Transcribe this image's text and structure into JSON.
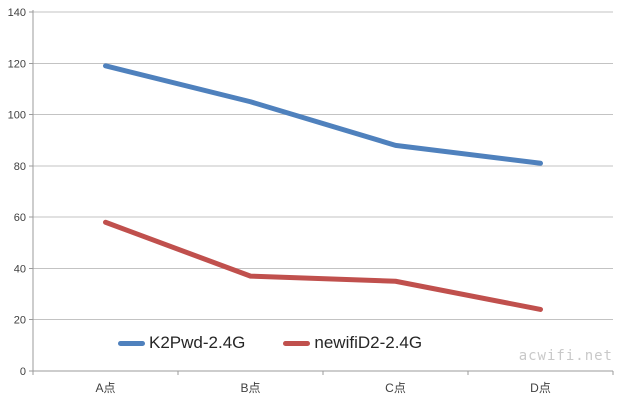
{
  "chart_data": {
    "type": "line",
    "title": "",
    "xlabel": "",
    "ylabel": "",
    "categories": [
      "A点",
      "B点",
      "C点",
      "D点"
    ],
    "series": [
      {
        "name": "K2Pwd-2.4G",
        "color": "#4F81BD",
        "values": [
          119,
          105,
          88,
          81
        ]
      },
      {
        "name": "newifiD2-2.4G",
        "color": "#C0504D",
        "values": [
          58,
          37,
          35,
          24
        ]
      }
    ],
    "ylim": [
      0,
      140
    ],
    "y_tick_step": 20,
    "y_ticks": [
      0,
      20,
      40,
      60,
      80,
      100,
      120,
      140
    ],
    "grid": true,
    "legend_position": "bottom-inside"
  },
  "watermark": "acwifi.net",
  "colors": {
    "background": "#FFFFFF",
    "gridline": "#C3C3C3",
    "axis": "#9B9B9B",
    "tick_label": "#3F3F3F",
    "legend_text": "#262626",
    "watermark": "#C9C9C9"
  }
}
